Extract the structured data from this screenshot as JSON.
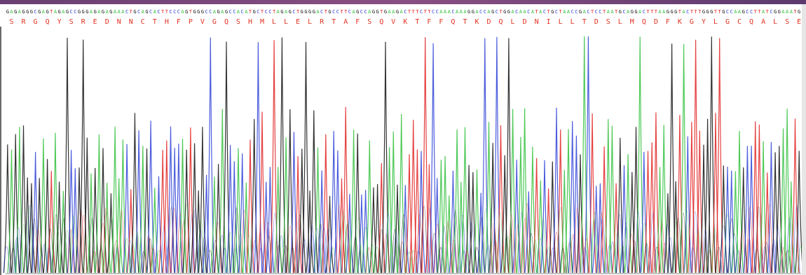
{
  "sequence": {
    "nucleotides": "GAGAGGGCGAGTAGAGCCGGGAGAGAGAAACTGCAGCACTTCCCAGTGGGCCAGAGCCACATGCTCCTAGAGCTGGGGACTGCCTTCAGCCAGGTGAAGACTTTCTTCCAAACAAAGGACCAGCTGGACAACATACTGCTAACCGACTCCTAATGCAGGACTTTAAGGGTACTTTGGGTTGCCAAGCCTTATCGGAAATG",
    "amino_acids": "SRGQYSREDNNCTHFPVGQSHMLLELRTAFSQVKTFFQTKDQLDNILLTDSLMQDFKGYLGCQALSEM"
  },
  "colors": {
    "A": "#2fbf3a",
    "C": "#2b3fd6",
    "G": "#111111",
    "T": "#e02020",
    "amino_acid_text": "#e0311f"
  },
  "icons": {
    "trace": "chromatogram-trace"
  }
}
